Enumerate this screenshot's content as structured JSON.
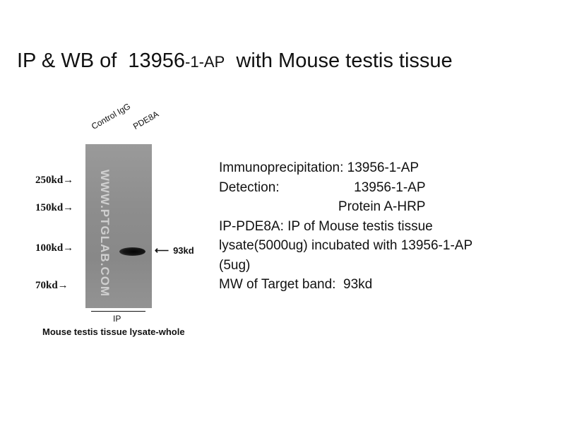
{
  "title": {
    "part1": "IP & WB of  13956",
    "part2": "-1-AP",
    "part3": "  with Mouse testis tissue"
  },
  "lanes": [
    "Control IgG",
    "PDE8A"
  ],
  "markers": [
    "250kd→",
    "150kd→",
    "100kd→",
    "70kd→"
  ],
  "band_label": "93kd",
  "watermark": "WWW.PTGLAB.COM",
  "ip_label": "IP",
  "lysate_label": "Mouse testis tissue lysate-whole",
  "info": {
    "line1": "Immunoprecipitation: 13956-1-AP",
    "line2": "Detection:                    13956-1-AP",
    "line3": "                                Protein A-HRP",
    "line4": "IP-PDE8A: IP of Mouse testis tissue",
    "line5": "lysate(5000ug) incubated with 13956-1-AP",
    "line6": "(5ug)",
    "line7": "MW of Target band:  93kd"
  }
}
